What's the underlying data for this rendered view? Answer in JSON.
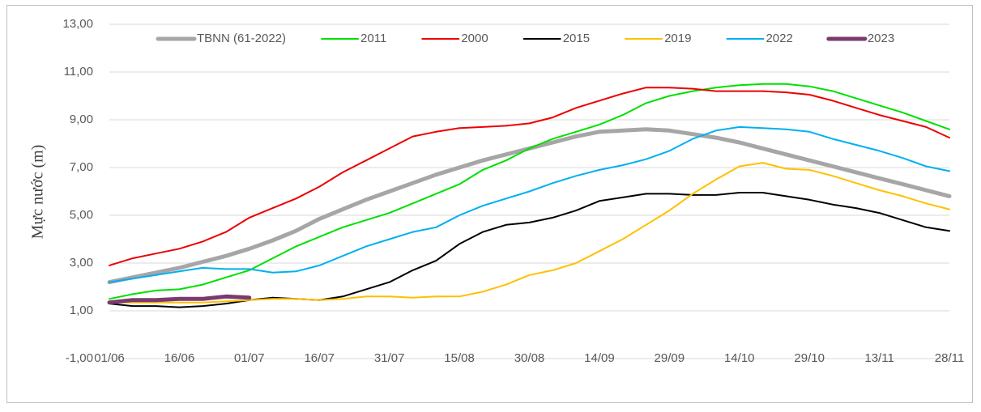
{
  "chart_data": {
    "type": "line",
    "y_label": "Mực nước (m)",
    "categories": [
      "01/06",
      null,
      null,
      "16/06",
      null,
      null,
      "01/07",
      null,
      null,
      "16/07",
      null,
      null,
      "31/07",
      null,
      null,
      "15/08",
      null,
      null,
      "30/08",
      null,
      null,
      "14/09",
      null,
      null,
      "29/09",
      null,
      null,
      "14/10",
      null,
      null,
      "29/10",
      null,
      null,
      "13/11",
      null,
      null,
      "28/11"
    ],
    "series": [
      {
        "name": "TBNN (61-2022)",
        "color": "#a6a6a6",
        "width": 5,
        "values": [
          2.2,
          2.4,
          2.6,
          2.8,
          3.05,
          3.3,
          3.6,
          3.95,
          4.35,
          4.85,
          5.25,
          5.65,
          6.0,
          6.35,
          6.7,
          7.0,
          7.3,
          7.55,
          7.8,
          8.05,
          8.3,
          8.5,
          8.55,
          8.6,
          8.55,
          8.4,
          8.25,
          8.05,
          7.8,
          7.55,
          7.3,
          7.05,
          6.8,
          6.55,
          6.3,
          6.05,
          5.8
        ]
      },
      {
        "name": "2011",
        "color": "#00e000",
        "width": 2,
        "values": [
          1.5,
          1.7,
          1.85,
          1.9,
          2.1,
          2.4,
          2.7,
          3.2,
          3.7,
          4.1,
          4.5,
          4.8,
          5.1,
          5.5,
          5.9,
          6.3,
          6.9,
          7.3,
          7.8,
          8.2,
          8.5,
          8.8,
          9.2,
          9.7,
          10.0,
          10.2,
          10.35,
          10.45,
          10.5,
          10.5,
          10.4,
          10.2,
          9.9,
          9.6,
          9.3,
          8.95,
          8.6
        ]
      },
      {
        "name": "2000",
        "color": "#ee0000",
        "width": 2,
        "values": [
          2.9,
          3.2,
          3.4,
          3.6,
          3.9,
          4.3,
          4.9,
          5.3,
          5.7,
          6.2,
          6.8,
          7.3,
          7.8,
          8.3,
          8.5,
          8.65,
          8.7,
          8.75,
          8.85,
          9.1,
          9.5,
          9.8,
          10.1,
          10.35,
          10.35,
          10.3,
          10.2,
          10.2,
          10.2,
          10.15,
          10.05,
          9.8,
          9.5,
          9.2,
          8.95,
          8.7,
          8.25
        ]
      },
      {
        "name": "2015",
        "color": "#000000",
        "width": 2,
        "values": [
          1.3,
          1.2,
          1.2,
          1.15,
          1.2,
          1.3,
          1.45,
          1.55,
          1.5,
          1.45,
          1.6,
          1.9,
          2.2,
          2.7,
          3.1,
          3.8,
          4.3,
          4.6,
          4.7,
          4.9,
          5.2,
          5.6,
          5.75,
          5.9,
          5.9,
          5.85,
          5.85,
          5.95,
          5.95,
          5.8,
          5.65,
          5.45,
          5.3,
          5.1,
          4.8,
          4.5,
          4.35
        ]
      },
      {
        "name": "2019",
        "color": "#ffc000",
        "width": 2,
        "values": [
          1.35,
          1.35,
          1.35,
          1.35,
          1.35,
          1.4,
          1.45,
          1.5,
          1.5,
          1.45,
          1.5,
          1.6,
          1.6,
          1.55,
          1.6,
          1.6,
          1.8,
          2.1,
          2.5,
          2.7,
          3.0,
          3.5,
          4.0,
          4.6,
          5.2,
          5.9,
          6.5,
          7.05,
          7.2,
          6.95,
          6.9,
          6.65,
          6.35,
          6.05,
          5.8,
          5.5,
          5.25
        ]
      },
      {
        "name": "2022",
        "color": "#00b0f0",
        "width": 2,
        "values": [
          2.2,
          2.35,
          2.5,
          2.65,
          2.8,
          2.75,
          2.75,
          2.6,
          2.65,
          2.9,
          3.3,
          3.7,
          4.0,
          4.3,
          4.5,
          5.0,
          5.4,
          5.7,
          6.0,
          6.35,
          6.65,
          6.9,
          7.1,
          7.35,
          7.7,
          8.2,
          8.55,
          8.7,
          8.65,
          8.6,
          8.5,
          8.2,
          7.95,
          7.7,
          7.4,
          7.05,
          6.85
        ]
      },
      {
        "name": "2023",
        "color": "#7b3a6e",
        "width": 5,
        "values": [
          1.35,
          1.45,
          1.45,
          1.5,
          1.5,
          1.6,
          1.55,
          null,
          null,
          null,
          null,
          null,
          null,
          null,
          null,
          null,
          null,
          null,
          null,
          null,
          null,
          null,
          null,
          null,
          null,
          null,
          null,
          null,
          null,
          null,
          null,
          null,
          null,
          null,
          null,
          null,
          null
        ]
      }
    ],
    "ylim": [
      -1,
      13
    ],
    "yticks": [
      {
        "value": -1,
        "label": "-1,00"
      },
      {
        "value": 1,
        "label": "1,00"
      },
      {
        "value": 3,
        "label": "3,00"
      },
      {
        "value": 5,
        "label": "5,00"
      },
      {
        "value": 7,
        "label": "7,00"
      },
      {
        "value": 9,
        "label": "9,00"
      },
      {
        "value": 11,
        "label": "11,00"
      },
      {
        "value": 13,
        "label": "13,00"
      }
    ],
    "grid": true,
    "legend": "top"
  }
}
